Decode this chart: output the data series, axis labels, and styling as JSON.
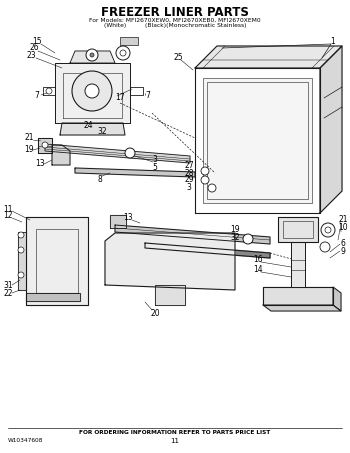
{
  "title": "FREEZER LINER PARTS",
  "subtitle1": "For Models: MFI2670XEW0, MFI2670XEB0, MFI2670XEM0",
  "subtitle2": "(White)          (Black)(Monochromatic Stainless)",
  "footer_left": "W10347608",
  "footer_center": "11",
  "footer_text": "FOR ORDERING INFORMATION REFER TO PARTS PRICE LIST",
  "bg_color": "#ffffff",
  "line_color": "#1a1a1a",
  "fig_width": 3.5,
  "fig_height": 4.53,
  "dpi": 100
}
